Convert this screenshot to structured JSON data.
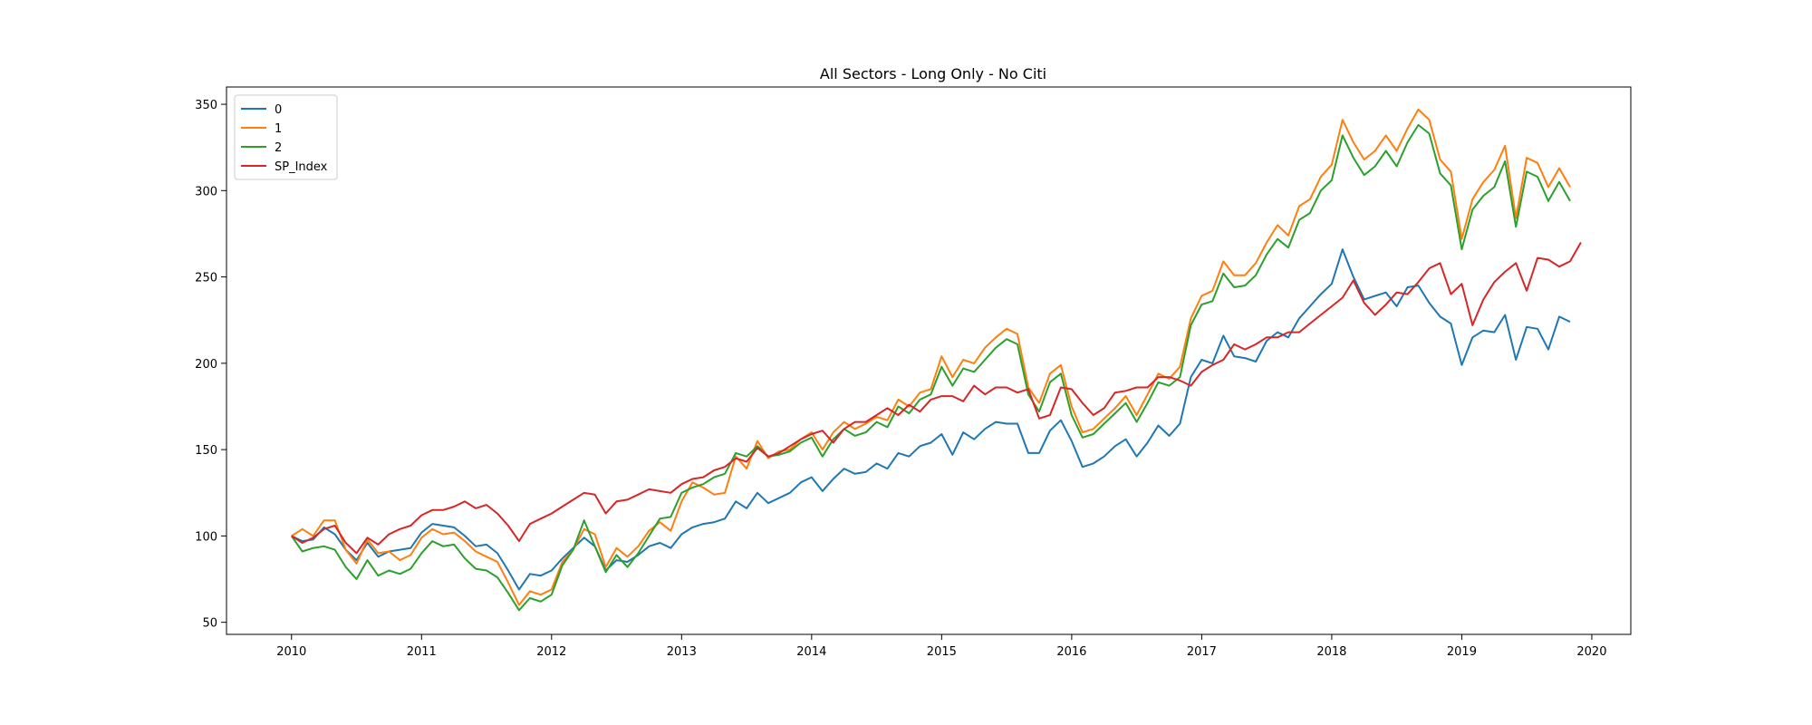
{
  "chart_data": {
    "type": "line",
    "title": "All Sectors  - Long Only - No Citi",
    "xlabel": "",
    "ylabel": "",
    "x_start": 2010.0,
    "x_step": 0.08333,
    "xlim": [
      2009.5,
      2020.3
    ],
    "ylim": [
      43,
      360
    ],
    "x_ticks": [
      "2010",
      "2011",
      "2012",
      "2013",
      "2014",
      "2015",
      "2016",
      "2017",
      "2018",
      "2019",
      "2020"
    ],
    "y_ticks": [
      "50",
      "100",
      "150",
      "200",
      "250",
      "300",
      "350"
    ],
    "legend_position": "top-left",
    "grid": false,
    "series": [
      {
        "name": "0",
        "color": "#1f77b4",
        "values": [
          100,
          97,
          98,
          105,
          101,
          92,
          86,
          96,
          88,
          91,
          92,
          93,
          102,
          107,
          106,
          105,
          100,
          94,
          95,
          90,
          80,
          69,
          78,
          77,
          80,
          87,
          93,
          99,
          94,
          80,
          86,
          85,
          89,
          94,
          96,
          93,
          101,
          105,
          107,
          108,
          110,
          120,
          116,
          125,
          119,
          122,
          125,
          131,
          134,
          126,
          133,
          139,
          136,
          137,
          142,
          139,
          148,
          146,
          152,
          154,
          159,
          147,
          160,
          156,
          162,
          166,
          165,
          165,
          148,
          148,
          161,
          167,
          155,
          140,
          142,
          146,
          152,
          156,
          146,
          154,
          164,
          158,
          165,
          192,
          202,
          200,
          216,
          204,
          203,
          201,
          213,
          218,
          215,
          226,
          233,
          240,
          246,
          266,
          250,
          237,
          239,
          241,
          233,
          244,
          245,
          235,
          227,
          223,
          199,
          215,
          219,
          218,
          228,
          202,
          221,
          220,
          208,
          227,
          224
        ]
      },
      {
        "name": "1",
        "color": "#ff7f0e",
        "values": [
          100,
          104,
          100,
          109,
          109,
          92,
          84,
          98,
          90,
          91,
          86,
          89,
          99,
          104,
          101,
          102,
          97,
          91,
          88,
          85,
          73,
          60,
          68,
          66,
          69,
          85,
          92,
          104,
          101,
          82,
          93,
          88,
          94,
          103,
          108,
          103,
          120,
          131,
          128,
          124,
          125,
          146,
          139,
          155,
          145,
          149,
          150,
          156,
          160,
          150,
          160,
          166,
          162,
          165,
          169,
          167,
          179,
          175,
          183,
          185,
          204,
          192,
          202,
          200,
          209,
          215,
          220,
          217,
          186,
          177,
          194,
          199,
          175,
          160,
          162,
          168,
          174,
          181,
          170,
          182,
          194,
          191,
          198,
          226,
          239,
          242,
          259,
          251,
          251,
          258,
          270,
          280,
          274,
          291,
          295,
          308,
          315,
          341,
          328,
          318,
          323,
          332,
          323,
          336,
          347,
          341,
          318,
          311,
          272,
          295,
          305,
          312,
          326,
          284,
          319,
          316,
          302,
          313,
          302
        ]
      },
      {
        "name": "2",
        "color": "#2ca02c",
        "values": [
          100,
          91,
          93,
          94,
          92,
          82,
          75,
          86,
          77,
          80,
          78,
          81,
          90,
          97,
          94,
          95,
          87,
          81,
          80,
          76,
          67,
          57,
          64,
          62,
          66,
          83,
          92,
          109,
          94,
          79,
          89,
          82,
          90,
          100,
          110,
          111,
          125,
          128,
          130,
          134,
          136,
          148,
          146,
          152,
          146,
          147,
          149,
          154,
          157,
          146,
          156,
          162,
          158,
          160,
          166,
          163,
          175,
          171,
          179,
          182,
          198,
          187,
          197,
          195,
          202,
          209,
          214,
          211,
          182,
          172,
          189,
          194,
          170,
          157,
          159,
          165,
          171,
          177,
          166,
          177,
          189,
          187,
          192,
          222,
          234,
          236,
          252,
          244,
          245,
          251,
          263,
          272,
          267,
          283,
          287,
          300,
          306,
          332,
          319,
          309,
          314,
          323,
          314,
          328,
          338,
          333,
          310,
          303,
          266,
          289,
          297,
          302,
          317,
          279,
          311,
          308,
          294,
          305,
          294
        ]
      },
      {
        "name": "SP_Index",
        "color": "#d62728",
        "values": [
          100,
          96,
          99,
          104,
          106,
          96,
          90,
          99,
          95,
          101,
          104,
          106,
          112,
          115,
          115,
          117,
          120,
          116,
          118,
          113,
          106,
          97,
          107,
          110,
          113,
          117,
          121,
          125,
          124,
          113,
          120,
          121,
          124,
          127,
          126,
          125,
          130,
          133,
          134,
          138,
          140,
          145,
          143,
          151,
          146,
          148,
          152,
          156,
          159,
          161,
          154,
          162,
          166,
          166,
          170,
          174,
          170,
          176,
          172,
          179,
          181,
          181,
          178,
          187,
          182,
          186,
          186,
          183,
          185,
          168,
          170,
          186,
          185,
          177,
          170,
          174,
          183,
          184,
          186,
          186,
          192,
          192,
          190,
          187,
          195,
          199,
          202,
          211,
          208,
          211,
          215,
          215,
          218,
          218,
          223,
          228,
          233,
          238,
          248,
          235,
          228,
          234,
          241,
          240,
          247,
          255,
          258,
          240,
          246,
          222,
          237,
          247,
          253,
          258,
          242,
          261,
          260,
          256,
          259,
          270
        ]
      }
    ]
  }
}
